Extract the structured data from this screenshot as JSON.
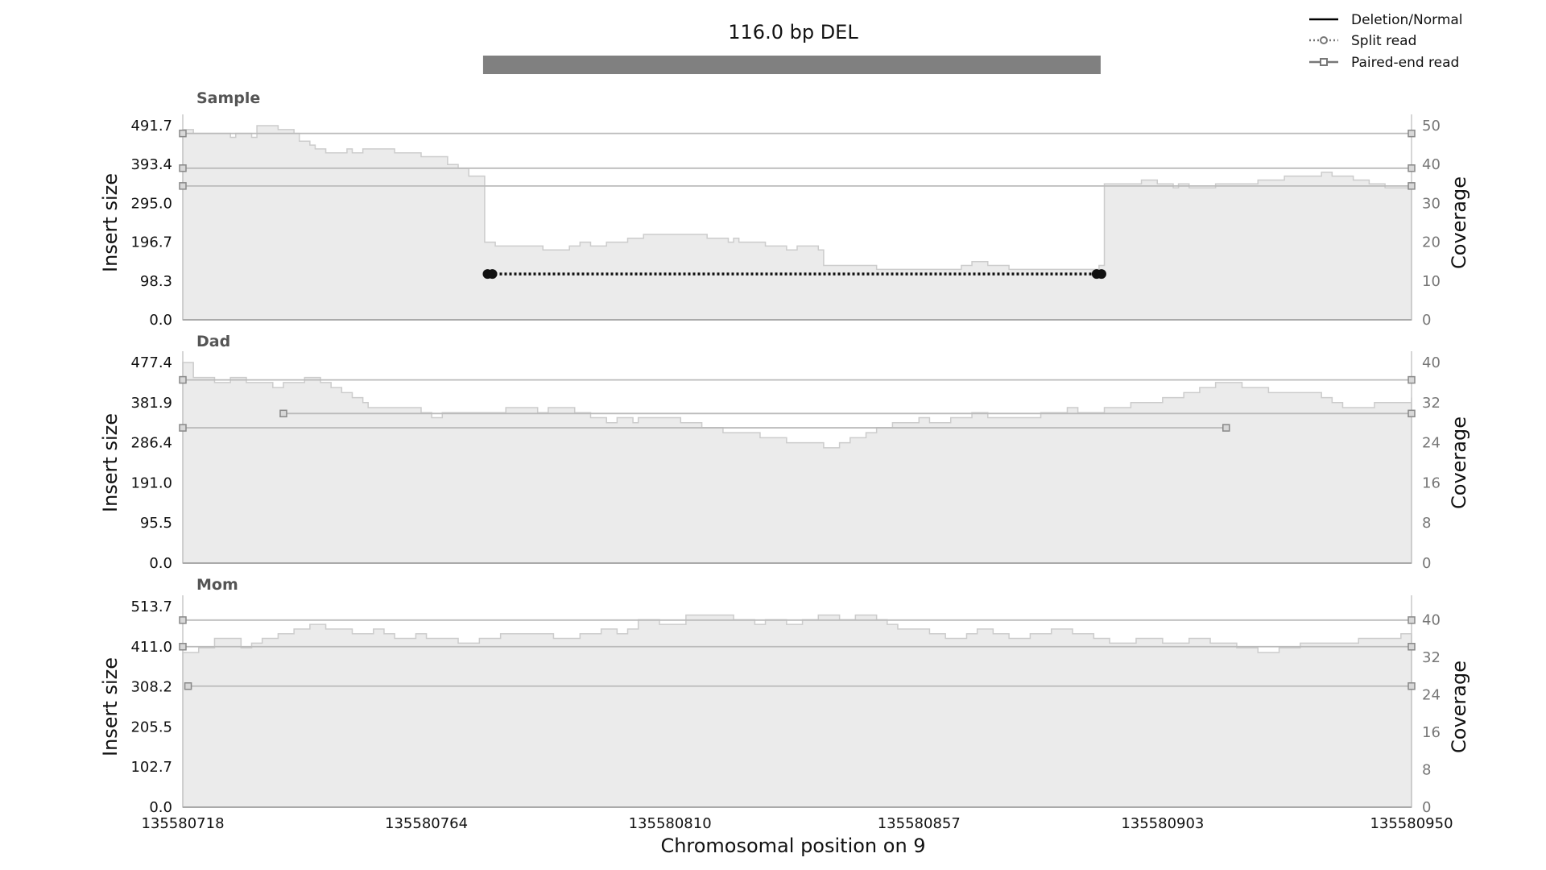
{
  "chart_data": {
    "type": "area",
    "title": "116.0 bp DEL",
    "variant_bar": {
      "start": 135580775,
      "end": 135580891,
      "color": "#808080"
    },
    "xlabel": "Chromosomal position on 9",
    "xlim": [
      135580718,
      135580950
    ],
    "xticks": [
      135580718,
      135580764,
      135580810,
      135580857,
      135580903,
      135580950
    ],
    "xtick_labels": [
      "135580718",
      "135580764",
      "135580810",
      "135580857",
      "135580903",
      "135580950"
    ],
    "legend": {
      "position": "top-right",
      "entries": [
        {
          "label": "Deletion/Normal",
          "style": "solid",
          "color": "#000000"
        },
        {
          "label": "Split read",
          "style": "dotted-circle",
          "color": "#777777"
        },
        {
          "label": "Paired-end read",
          "style": "solid-square",
          "color": "#777777"
        }
      ]
    },
    "colors": {
      "coverage_fill": "#ebebeb",
      "coverage_edge": "#cccccc",
      "read_line": "#bbbbbb",
      "split_read": "#111111"
    },
    "panels": [
      {
        "name": "Sample",
        "ylabel": "Insert size",
        "y2label": "Coverage",
        "ylim": [
          0,
          491.7
        ],
        "yticks": [
          "0.0",
          "98.3",
          "196.7",
          "295.0",
          "393.4",
          "491.7"
        ],
        "y2lim": [
          0,
          50
        ],
        "y2ticks": [
          "0",
          "10",
          "20",
          "30",
          "40",
          "50"
        ],
        "coverage": [
          [
            135580718,
            49
          ],
          [
            135580720,
            48
          ],
          [
            135580727,
            47
          ],
          [
            135580728,
            48
          ],
          [
            135580731,
            47
          ],
          [
            135580732,
            50
          ],
          [
            135580736,
            49
          ],
          [
            135580739,
            48
          ],
          [
            135580740,
            46
          ],
          [
            135580742,
            45
          ],
          [
            135580743,
            44
          ],
          [
            135580745,
            43
          ],
          [
            135580749,
            44
          ],
          [
            135580750,
            43
          ],
          [
            135580752,
            44
          ],
          [
            135580758,
            43
          ],
          [
            135580761,
            43
          ],
          [
            135580763,
            42
          ],
          [
            135580768,
            40
          ],
          [
            135580770,
            39
          ],
          [
            135580772,
            37
          ],
          [
            135580775,
            20
          ],
          [
            135580777,
            19
          ],
          [
            135580786,
            18
          ],
          [
            135580791,
            19
          ],
          [
            135580793,
            20
          ],
          [
            135580795,
            19
          ],
          [
            135580798,
            20
          ],
          [
            135580802,
            21
          ],
          [
            135580805,
            22
          ],
          [
            135580817,
            21
          ],
          [
            135580821,
            20
          ],
          [
            135580822,
            21
          ],
          [
            135580823,
            20
          ],
          [
            135580828,
            19
          ],
          [
            135580832,
            18
          ],
          [
            135580834,
            19
          ],
          [
            135580838,
            18
          ],
          [
            135580839,
            14
          ],
          [
            135580849,
            13
          ],
          [
            135580865,
            14
          ],
          [
            135580867,
            15
          ],
          [
            135580870,
            14
          ],
          [
            135580874,
            13
          ],
          [
            135580891,
            14
          ],
          [
            135580892,
            35
          ],
          [
            135580899,
            36
          ],
          [
            135580902,
            35
          ],
          [
            135580905,
            34
          ],
          [
            135580906,
            35
          ],
          [
            135580908,
            34
          ],
          [
            135580913,
            35
          ],
          [
            135580917,
            35
          ],
          [
            135580921,
            36
          ],
          [
            135580926,
            37
          ],
          [
            135580933,
            38
          ],
          [
            135580935,
            37
          ],
          [
            135580939,
            36
          ],
          [
            135580942,
            35
          ],
          [
            135580945,
            34
          ],
          [
            135580950,
            34
          ]
        ],
        "paired_end_reads": [
          {
            "start": 135580718,
            "end": 135580950,
            "insert_size": 472
          },
          {
            "start": 135580718,
            "end": 135580950,
            "insert_size": 384
          },
          {
            "start": 135580718,
            "end": 135580950,
            "insert_size": 339
          }
        ],
        "split_reads": [
          {
            "start": 135580776,
            "end": 135580891,
            "insert_size": 116
          }
        ]
      },
      {
        "name": "Dad",
        "ylabel": "Insert size",
        "y2label": "Coverage",
        "ylim": [
          0,
          477.4
        ],
        "yticks": [
          "0.0",
          "95.5",
          "191.0",
          "286.4",
          "381.9",
          "477.4"
        ],
        "y2lim": [
          0,
          40
        ],
        "y2ticks": [
          "0",
          "8",
          "16",
          "24",
          "32",
          "40"
        ],
        "coverage": [
          [
            135580718,
            40
          ],
          [
            135580720,
            37
          ],
          [
            135580724,
            36
          ],
          [
            135580727,
            37
          ],
          [
            135580730,
            36
          ],
          [
            135580735,
            35
          ],
          [
            135580737,
            36
          ],
          [
            135580741,
            37
          ],
          [
            135580744,
            36
          ],
          [
            135580746,
            35
          ],
          [
            135580748,
            34
          ],
          [
            135580750,
            33
          ],
          [
            135580752,
            32
          ],
          [
            135580753,
            31
          ],
          [
            135580757,
            31
          ],
          [
            135580763,
            30
          ],
          [
            135580765,
            29
          ],
          [
            135580767,
            30
          ],
          [
            135580775,
            30
          ],
          [
            135580779,
            31
          ],
          [
            135580785,
            30
          ],
          [
            135580787,
            31
          ],
          [
            135580792,
            30
          ],
          [
            135580795,
            29
          ],
          [
            135580798,
            28
          ],
          [
            135580800,
            29
          ],
          [
            135580803,
            28
          ],
          [
            135580804,
            29
          ],
          [
            135580812,
            28
          ],
          [
            135580816,
            27
          ],
          [
            135580820,
            26
          ],
          [
            135580827,
            25
          ],
          [
            135580832,
            24
          ],
          [
            135580836,
            24
          ],
          [
            135580839,
            23
          ],
          [
            135580842,
            24
          ],
          [
            135580844,
            25
          ],
          [
            135580847,
            26
          ],
          [
            135580849,
            27
          ],
          [
            135580852,
            28
          ],
          [
            135580857,
            29
          ],
          [
            135580859,
            28
          ],
          [
            135580863,
            29
          ],
          [
            135580867,
            30
          ],
          [
            135580870,
            29
          ],
          [
            135580880,
            30
          ],
          [
            135580885,
            31
          ],
          [
            135580887,
            30
          ],
          [
            135580892,
            31
          ],
          [
            135580897,
            32
          ],
          [
            135580903,
            33
          ],
          [
            135580907,
            34
          ],
          [
            135580910,
            35
          ],
          [
            135580913,
            36
          ],
          [
            135580918,
            35
          ],
          [
            135580923,
            34
          ],
          [
            135580933,
            33
          ],
          [
            135580935,
            32
          ],
          [
            135580937,
            31
          ],
          [
            135580943,
            32
          ],
          [
            135580950,
            33
          ]
        ],
        "paired_end_reads": [
          {
            "start": 135580718,
            "end": 135580950,
            "insert_size": 436
          },
          {
            "start": 135580737,
            "end": 135580950,
            "insert_size": 356
          },
          {
            "start": 135580718,
            "end": 135580915,
            "insert_size": 322
          }
        ],
        "split_reads": []
      },
      {
        "name": "Mom",
        "ylabel": "Insert size",
        "y2label": "Coverage",
        "ylim": [
          0,
          513.7
        ],
        "yticks": [
          "0.0",
          "102.7",
          "205.5",
          "308.2",
          "411.0",
          "513.7"
        ],
        "y2lim": [
          0,
          42.8
        ],
        "y2ticks": [
          "0",
          "8",
          "16",
          "24",
          "32",
          "40"
        ],
        "coverage": [
          [
            135580718,
            33
          ],
          [
            135580721,
            34
          ],
          [
            135580724,
            36
          ],
          [
            135580729,
            34
          ],
          [
            135580731,
            35
          ],
          [
            135580733,
            36
          ],
          [
            135580736,
            37
          ],
          [
            135580739,
            38
          ],
          [
            135580742,
            39
          ],
          [
            135580745,
            38
          ],
          [
            135580750,
            37
          ],
          [
            135580754,
            38
          ],
          [
            135580756,
            37
          ],
          [
            135580758,
            36
          ],
          [
            135580762,
            37
          ],
          [
            135580764,
            36
          ],
          [
            135580770,
            35
          ],
          [
            135580774,
            36
          ],
          [
            135580778,
            37
          ],
          [
            135580783,
            37
          ],
          [
            135580788,
            36
          ],
          [
            135580793,
            37
          ],
          [
            135580797,
            38
          ],
          [
            135580800,
            37
          ],
          [
            135580802,
            38
          ],
          [
            135580804,
            40
          ],
          [
            135580808,
            39
          ],
          [
            135580813,
            41
          ],
          [
            135580822,
            40
          ],
          [
            135580826,
            39
          ],
          [
            135580828,
            40
          ],
          [
            135580832,
            39
          ],
          [
            135580835,
            40
          ],
          [
            135580838,
            41
          ],
          [
            135580842,
            40
          ],
          [
            135580845,
            41
          ],
          [
            135580849,
            40
          ],
          [
            135580851,
            39
          ],
          [
            135580853,
            38
          ],
          [
            135580859,
            37
          ],
          [
            135580862,
            36
          ],
          [
            135580866,
            37
          ],
          [
            135580868,
            38
          ],
          [
            135580871,
            37
          ],
          [
            135580874,
            36
          ],
          [
            135580878,
            37
          ],
          [
            135580882,
            38
          ],
          [
            135580886,
            37
          ],
          [
            135580890,
            36
          ],
          [
            135580893,
            35
          ],
          [
            135580898,
            36
          ],
          [
            135580903,
            35
          ],
          [
            135580908,
            36
          ],
          [
            135580912,
            35
          ],
          [
            135580917,
            34
          ],
          [
            135580921,
            33
          ],
          [
            135580925,
            34
          ],
          [
            135580929,
            35
          ],
          [
            135580936,
            35
          ],
          [
            135580940,
            36
          ],
          [
            135580944,
            36
          ],
          [
            135580948,
            37
          ],
          [
            135580950,
            35
          ]
        ],
        "paired_end_reads": [
          {
            "start": 135580718,
            "end": 135580950,
            "insert_size": 479
          },
          {
            "start": 135580718,
            "end": 135580950,
            "insert_size": 411
          },
          {
            "start": 135580719,
            "end": 135580950,
            "insert_size": 310
          }
        ],
        "split_reads": []
      }
    ]
  }
}
